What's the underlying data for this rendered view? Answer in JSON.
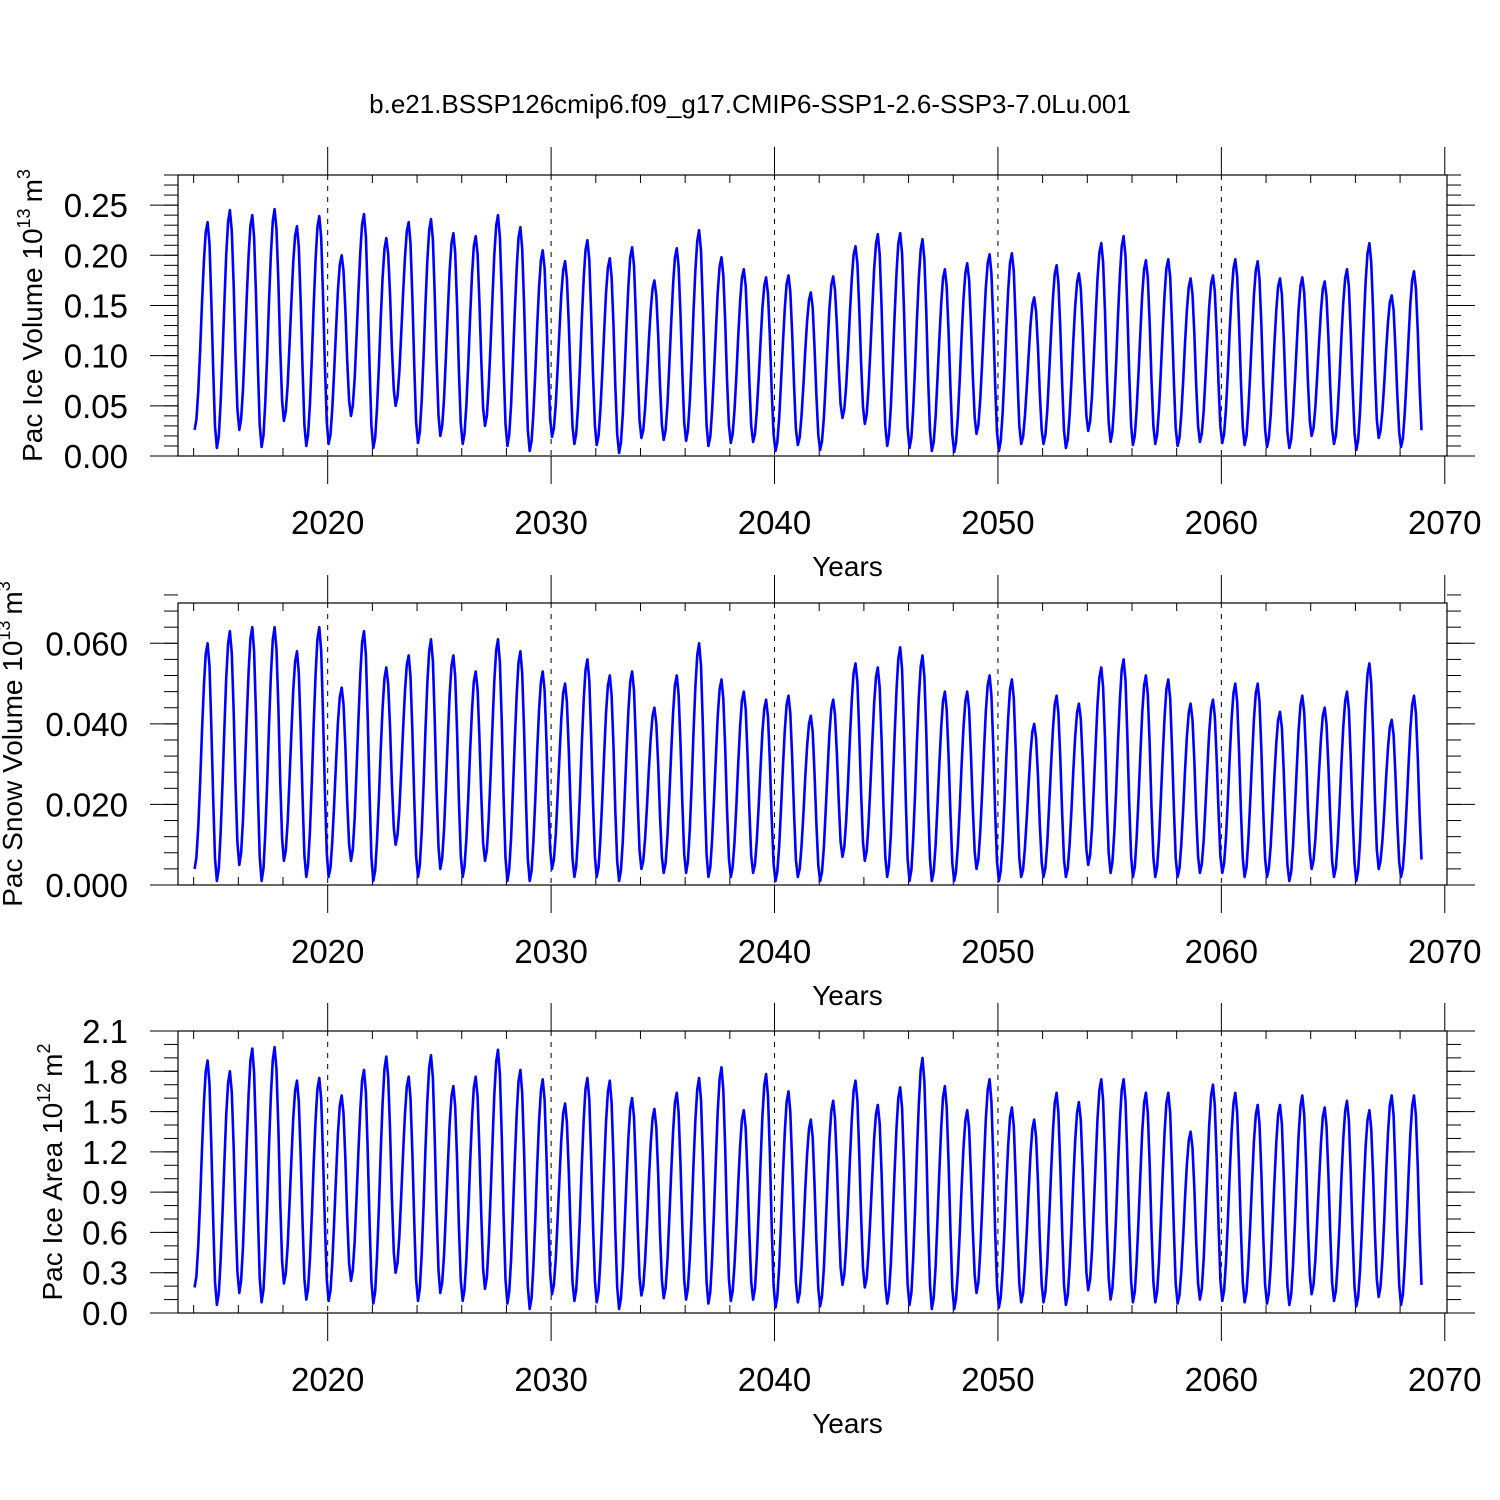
{
  "figure_title": "b.e21.BSSP126cmip6.f09_g17.CMIP6-SSP1-2.6-SSP3-7.0Lu.001",
  "colors": {
    "series": "#0000ff",
    "axes": "#000000",
    "background": "#ffffff"
  },
  "chart_data": [
    {
      "type": "line",
      "title": "",
      "ylabel_text": "Pac Ice Volume 10",
      "ylabel_exponent": "13",
      "ylabel_unit": "m",
      "ylabel_unit_exponent": "3",
      "xlabel": "Years",
      "xlim": [
        2013.3,
        2070.1
      ],
      "ylim": [
        0.0,
        0.28
      ],
      "xticks": [
        2020,
        2030,
        2040,
        2050,
        2060,
        2070
      ],
      "xtick_labels": [
        "2020",
        "2030",
        "2040",
        "2050",
        "2060",
        "2070"
      ],
      "yticks": [
        0.0,
        0.05,
        0.1,
        0.15,
        0.2,
        0.25
      ],
      "ytick_labels": [
        "0.00",
        "0.05",
        "0.10",
        "0.15",
        "0.20",
        "0.25"
      ],
      "minor_y_step": 0.01,
      "grid_years": [
        2020,
        2030,
        2040,
        2050,
        2060
      ],
      "start_year": 2014.0,
      "end_year": 2070.0,
      "series": [
        {
          "name": "Pac Ice Volume",
          "annual_max": [
            0.233,
            0.245,
            0.24,
            0.246,
            0.229,
            0.239,
            0.2,
            0.241,
            0.217,
            0.233,
            0.236,
            0.222,
            0.219,
            0.24,
            0.228,
            0.205,
            0.194,
            0.215,
            0.197,
            0.208,
            0.175,
            0.207,
            0.225,
            0.198,
            0.186,
            0.178,
            0.18,
            0.163,
            0.179,
            0.209,
            0.221,
            0.222,
            0.216,
            0.186,
            0.192,
            0.201,
            0.202,
            0.158,
            0.19,
            0.182,
            0.212,
            0.219,
            0.195,
            0.196,
            0.177,
            0.18,
            0.196,
            0.194,
            0.177,
            0.178,
            0.174,
            0.186,
            0.212,
            0.16,
            0.184
          ],
          "annual_min": [
            0.026,
            0.008,
            0.026,
            0.009,
            0.035,
            0.01,
            0.012,
            0.04,
            0.008,
            0.05,
            0.013,
            0.02,
            0.012,
            0.03,
            0.01,
            0.005,
            0.019,
            0.012,
            0.011,
            0.003,
            0.018,
            0.016,
            0.015,
            0.01,
            0.013,
            0.014,
            0.005,
            0.011,
            0.006,
            0.038,
            0.032,
            0.01,
            0.008,
            0.005,
            0.004,
            0.022,
            0.005,
            0.012,
            0.012,
            0.008,
            0.025,
            0.014,
            0.011,
            0.012,
            0.01,
            0.014,
            0.013,
            0.011,
            0.009,
            0.008,
            0.02,
            0.012,
            0.006,
            0.018,
            0.009
          ]
        }
      ]
    },
    {
      "type": "line",
      "title": "",
      "ylabel_text": "Pac Snow Volume 10",
      "ylabel_exponent": "13",
      "ylabel_unit": "m",
      "ylabel_unit_exponent": "3",
      "xlabel": "Years",
      "xlim": [
        2013.3,
        2070.1
      ],
      "ylim": [
        0.0,
        0.07
      ],
      "xticks": [
        2020,
        2030,
        2040,
        2050,
        2060,
        2070
      ],
      "xtick_labels": [
        "2020",
        "2030",
        "2040",
        "2050",
        "2060",
        "2070"
      ],
      "yticks": [
        0.0,
        0.02,
        0.04,
        0.06
      ],
      "ytick_labels": [
        "0.000",
        "0.020",
        "0.040",
        "0.060"
      ],
      "minor_y_step": 0.004,
      "grid_years": [
        2020,
        2030,
        2040,
        2050,
        2060
      ],
      "start_year": 2014.0,
      "end_year": 2070.0,
      "series": [
        {
          "name": "Pac Snow Volume",
          "annual_max": [
            0.06,
            0.063,
            0.064,
            0.064,
            0.058,
            0.064,
            0.049,
            0.063,
            0.054,
            0.057,
            0.061,
            0.057,
            0.053,
            0.061,
            0.058,
            0.053,
            0.05,
            0.056,
            0.052,
            0.053,
            0.044,
            0.052,
            0.06,
            0.051,
            0.048,
            0.046,
            0.047,
            0.042,
            0.046,
            0.055,
            0.054,
            0.059,
            0.057,
            0.048,
            0.048,
            0.052,
            0.051,
            0.04,
            0.047,
            0.045,
            0.054,
            0.056,
            0.052,
            0.051,
            0.045,
            0.046,
            0.05,
            0.05,
            0.043,
            0.047,
            0.044,
            0.048,
            0.055,
            0.041,
            0.047
          ],
          "annual_min": [
            0.004,
            0.001,
            0.005,
            0.001,
            0.006,
            0.002,
            0.002,
            0.006,
            0.001,
            0.01,
            0.002,
            0.004,
            0.002,
            0.006,
            0.001,
            0.001,
            0.004,
            0.002,
            0.002,
            0.001,
            0.004,
            0.003,
            0.003,
            0.002,
            0.002,
            0.003,
            0.001,
            0.002,
            0.001,
            0.007,
            0.006,
            0.002,
            0.001,
            0.001,
            0.001,
            0.004,
            0.001,
            0.002,
            0.002,
            0.002,
            0.005,
            0.003,
            0.002,
            0.002,
            0.002,
            0.003,
            0.003,
            0.002,
            0.002,
            0.001,
            0.004,
            0.002,
            0.001,
            0.004,
            0.002
          ]
        }
      ]
    },
    {
      "type": "line",
      "title": "",
      "ylabel_text": "Pac Ice Area 10",
      "ylabel_exponent": "12",
      "ylabel_unit": "m",
      "ylabel_unit_exponent": "2",
      "xlabel": "Years",
      "xlim": [
        2013.3,
        2070.1
      ],
      "ylim": [
        0.0,
        2.1
      ],
      "xticks": [
        2020,
        2030,
        2040,
        2050,
        2060,
        2070
      ],
      "xtick_labels": [
        "2020",
        "2030",
        "2040",
        "2050",
        "2060",
        "2070"
      ],
      "yticks": [
        0.0,
        0.3,
        0.6,
        0.9,
        1.2,
        1.5,
        1.8,
        2.1
      ],
      "ytick_labels": [
        "0.0",
        "0.3",
        "0.6",
        "0.9",
        "1.2",
        "1.5",
        "1.8",
        "2.1"
      ],
      "minor_y_step": 0.1,
      "grid_years": [
        2020,
        2030,
        2040,
        2050,
        2060
      ],
      "start_year": 2014.0,
      "end_year": 2070.0,
      "series": [
        {
          "name": "Pac Ice Area",
          "annual_max": [
            1.88,
            1.8,
            1.97,
            1.98,
            1.73,
            1.75,
            1.62,
            1.81,
            1.91,
            1.76,
            1.92,
            1.69,
            1.76,
            1.96,
            1.81,
            1.74,
            1.56,
            1.75,
            1.73,
            1.6,
            1.52,
            1.64,
            1.75,
            1.83,
            1.51,
            1.78,
            1.65,
            1.44,
            1.58,
            1.73,
            1.55,
            1.68,
            1.9,
            1.69,
            1.51,
            1.74,
            1.53,
            1.44,
            1.64,
            1.57,
            1.74,
            1.74,
            1.64,
            1.64,
            1.35,
            1.7,
            1.64,
            1.55,
            1.55,
            1.62,
            1.53,
            1.58,
            1.51,
            1.62,
            1.62
          ],
          "annual_min": [
            0.19,
            0.06,
            0.15,
            0.08,
            0.22,
            0.1,
            0.09,
            0.24,
            0.07,
            0.3,
            0.09,
            0.15,
            0.09,
            0.18,
            0.07,
            0.03,
            0.14,
            0.09,
            0.08,
            0.03,
            0.13,
            0.11,
            0.1,
            0.07,
            0.09,
            0.1,
            0.04,
            0.08,
            0.05,
            0.21,
            0.19,
            0.07,
            0.06,
            0.03,
            0.03,
            0.15,
            0.04,
            0.08,
            0.08,
            0.06,
            0.17,
            0.1,
            0.08,
            0.08,
            0.07,
            0.1,
            0.09,
            0.08,
            0.07,
            0.06,
            0.14,
            0.09,
            0.05,
            0.12,
            0.06
          ]
        }
      ]
    }
  ]
}
